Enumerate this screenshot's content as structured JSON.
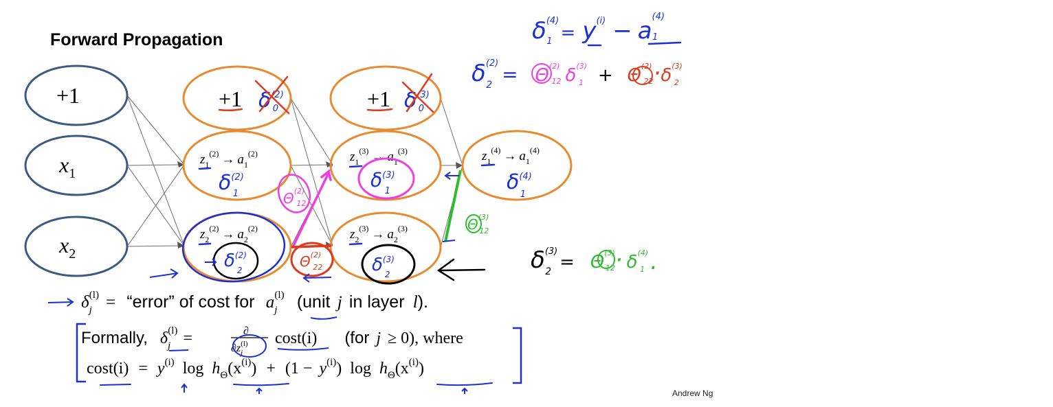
{
  "slide": {
    "title": "Forward Propagation",
    "credit": "Andrew Ng"
  },
  "network": {
    "input_layer": {
      "bias": "+1",
      "x1": "x",
      "x1_sub": "1",
      "x2": "x",
      "x2_sub": "2"
    },
    "hidden_layer_2": {
      "bias": "+1",
      "unit1_z": "z",
      "unit1_z_sub": "1",
      "unit1_z_sup": "(2)",
      "unit1_a": "a",
      "unit1_a_sub": "1",
      "unit1_a_sup": "(2)",
      "unit2_z": "z",
      "unit2_z_sub": "2",
      "unit2_z_sup": "(2)",
      "unit2_a": "a",
      "unit2_a_sub": "2",
      "unit2_a_sup": "(2)"
    },
    "hidden_layer_3": {
      "bias": "+1",
      "unit1_z": "z",
      "unit1_z_sub": "1",
      "unit1_z_sup": "(3)",
      "unit1_a": "a",
      "unit1_a_sub": "1",
      "unit1_a_sup": "(3)",
      "unit2_z": "z",
      "unit2_z_sub": "2",
      "unit2_z_sup": "(3)",
      "unit2_a": "a",
      "unit2_a_sub": "2",
      "unit2_a_sup": "(3)"
    },
    "output_layer": {
      "unit1_z": "z",
      "unit1_z_sub": "1",
      "unit1_z_sup": "(4)",
      "unit1_a": "a",
      "unit1_a_sub": "1",
      "unit1_a_sup": "(4)"
    },
    "arrow": "→"
  },
  "annotations": {
    "delta": "δ",
    "theta": "Θ",
    "crossed_bias_2_sup": "(2)",
    "crossed_bias_2_sub": "0",
    "crossed_bias_3_sup": "(3)",
    "crossed_bias_3_sub": "0",
    "delta_1_2_sup": "(2)",
    "delta_1_2_sub": "1",
    "delta_2_2_sup": "(2)",
    "delta_2_2_sub": "2",
    "delta_1_3_sup": "(3)",
    "delta_1_3_sub": "1",
    "delta_2_3_sup": "(3)",
    "delta_2_3_sub": "2",
    "delta_1_4_sup": "(4)",
    "delta_1_4_sub": "1",
    "theta_pink_sup": "(2)",
    "theta_pink_sub": "12",
    "theta_red_sup": "(2)",
    "theta_red_sub": "22",
    "theta_green_sup": "(3)",
    "theta_green_sub": "12"
  },
  "equations": {
    "eq1": {
      "delta_sup": "(4)",
      "delta_sub": "1",
      "equals": "=",
      "y": "y",
      "y_sup": "(i)",
      "minus": "−",
      "a": "a",
      "a_sup": "(4)",
      "a_sub": "1"
    },
    "eq2": {
      "delta_sup": "(2)",
      "delta_sub": "2",
      "equals": "=",
      "t1_sup": "(2)",
      "t1_sub": "12",
      "d1_sup": "(3)",
      "d1_sub": "1",
      "plus": "+",
      "t2_sup": "(2)",
      "t2_sub": "22",
      "dot": "·",
      "d2_sup": "(3)",
      "d2_sub": "2"
    },
    "eq3": {
      "delta_sup": "(3)",
      "delta_sub": "2",
      "equals": "=",
      "t_sup": "(3)",
      "t_sub": "12",
      "dot": "·",
      "d_sup": "(4)",
      "d_sub": "1",
      "period": "."
    }
  },
  "definition": {
    "delta": "δ",
    "sub": "j",
    "sup": "(l)",
    "equals": "=",
    "quoted": "“error” of cost for",
    "a": "a",
    "a_sub": "j",
    "a_sup": "(l)",
    "paren_open": "(unit",
    "j": "j",
    "in_layer": "in layer",
    "l": "l",
    "paren_close": ")."
  },
  "formal": {
    "lead": "Formally,",
    "delta": "δ",
    "sub": "j",
    "sup": "(l)",
    "equals": "=",
    "partial": "∂",
    "partial_den": "∂z",
    "den_sub": "j",
    "den_sup": "(l)",
    "cost": "cost(i)",
    "cond_open": "(for",
    "j": "j",
    "geq": "≥ 0), where"
  },
  "cost": {
    "lhs": "cost(i)",
    "equals": "=",
    "y": "y",
    "sup_i": "(i)",
    "log": "log",
    "h": "h",
    "h_sub": "Θ",
    "x_arg": "(x",
    "close": ")",
    "plus": "+",
    "one_minus": "(1 −",
    "y2": "y",
    "close2": ")",
    "log2": "log"
  }
}
